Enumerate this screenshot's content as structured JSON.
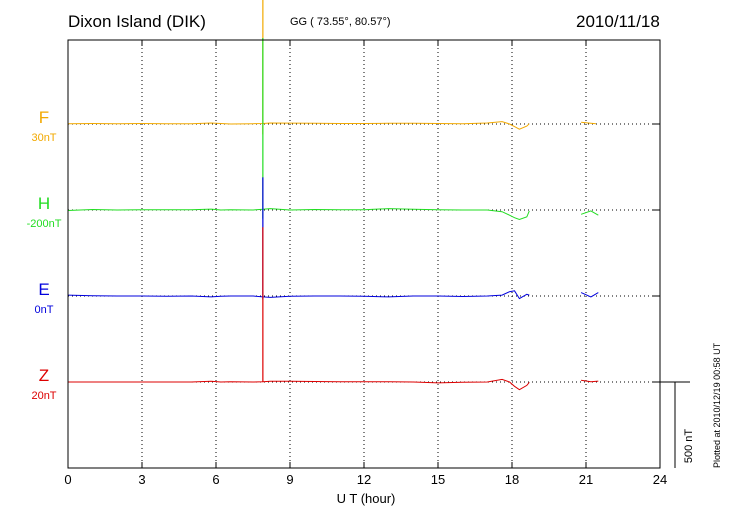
{
  "header": {
    "station": "Dixon Island (DIK)",
    "coords": "GG ( 73.55°,  80.57°)",
    "date": "2010/11/18",
    "plotted": "Plotted at 2010/12/19 00:58 UT"
  },
  "chart_data": {
    "type": "line",
    "title": "Dixon Island (DIK)",
    "xlabel": "U T (hour)",
    "xlim": [
      0,
      24
    ],
    "xticks": [
      0,
      3,
      6,
      9,
      12,
      15,
      18,
      21,
      24
    ],
    "grid": true,
    "scale_bar": {
      "label": "500 nT",
      "value_nT": 500
    },
    "series": [
      {
        "name": "F",
        "baseline": "30nT",
        "color": "#f2a900",
        "x": [
          0,
          1,
          2,
          3,
          4,
          5,
          5.8,
          6.2,
          6.6,
          7.5,
          7.9,
          8.2,
          9,
          10,
          11,
          12,
          13,
          14,
          15,
          16,
          17,
          17.6,
          17.9,
          18.1,
          18.3,
          18.6,
          18.7,
          null,
          20.8,
          21.4
        ],
        "values": [
          2,
          3,
          2,
          3,
          2,
          2,
          6,
          3,
          0,
          2,
          3,
          6,
          5,
          4,
          3,
          3,
          4,
          4,
          3,
          2,
          6,
          14,
          0,
          -15,
          -30,
          -12,
          2,
          null,
          10,
          2
        ]
      },
      {
        "name": "H",
        "baseline": "-200nT",
        "color": "#22dd22",
        "x": [
          0,
          1,
          2,
          3,
          4,
          5,
          5.8,
          6.2,
          6.6,
          7.5,
          7.9,
          8.2,
          9,
          10,
          11,
          12,
          13,
          14,
          15,
          16,
          17,
          17.6,
          17.9,
          18.1,
          18.3,
          18.6,
          18.7,
          null,
          20.8,
          21.2,
          21.5
        ],
        "values": [
          -3,
          3,
          0,
          2,
          1,
          2,
          5,
          0,
          2,
          0,
          4,
          8,
          0,
          3,
          2,
          2,
          8,
          4,
          2,
          0,
          0,
          -10,
          -30,
          -45,
          -55,
          -40,
          -5,
          null,
          -25,
          -5,
          -30
        ]
      },
      {
        "name": "E",
        "baseline": "0nT",
        "color": "#0000dd",
        "x": [
          0,
          1,
          2,
          3,
          4,
          5,
          5.8,
          6.2,
          6.6,
          7.5,
          7.9,
          8.2,
          9,
          10,
          11,
          12,
          13,
          14,
          15,
          16,
          17,
          17.6,
          17.9,
          18.1,
          18.3,
          18.6,
          18.7,
          null,
          20.8,
          21.2,
          21.5
        ],
        "values": [
          5,
          2,
          0,
          0,
          -2,
          0,
          -5,
          -2,
          0,
          0,
          -5,
          -8,
          -2,
          0,
          0,
          -2,
          -5,
          0,
          0,
          -3,
          0,
          5,
          25,
          30,
          -15,
          10,
          5,
          null,
          20,
          -5,
          20
        ]
      },
      {
        "name": "Z",
        "baseline": "20nT",
        "color": "#dd0000",
        "x": [
          0,
          1,
          2,
          3,
          4,
          5,
          5.8,
          6.2,
          6.6,
          7.5,
          7.9,
          8.2,
          9,
          10,
          11,
          12,
          13,
          14,
          15,
          16,
          17,
          17.6,
          17.9,
          18.1,
          18.3,
          18.6,
          18.7,
          null,
          20.8,
          21.2,
          21.5
        ],
        "values": [
          0,
          0,
          0,
          0,
          0,
          0,
          4,
          0,
          1,
          0,
          2,
          4,
          4,
          3,
          2,
          1,
          2,
          0,
          -5,
          -2,
          0,
          15,
          0,
          -25,
          -45,
          -20,
          -2,
          null,
          10,
          2,
          5
        ]
      }
    ],
    "spike": {
      "x": 7.9,
      "F": [
        -60,
        980
      ],
      "H": [
        -50,
        1000
      ],
      "E": [
        -20,
        690
      ],
      "Z": [
        0,
        900
      ]
    }
  }
}
